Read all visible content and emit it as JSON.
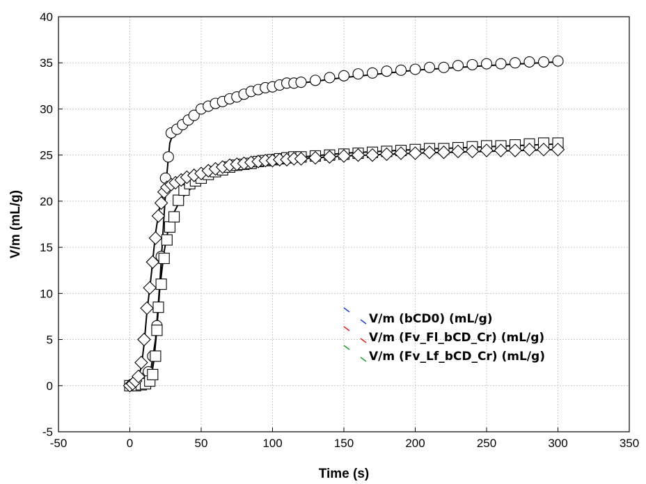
{
  "chart_data": {
    "type": "scatter",
    "xlabel": "Time (s)",
    "ylabel": "V/m (mL/g)",
    "xlim": [
      -50,
      350
    ],
    "ylim": [
      -5,
      40
    ],
    "x_ticks": [
      -50,
      0,
      50,
      100,
      150,
      200,
      250,
      300,
      350
    ],
    "y_ticks": [
      -5,
      0,
      5,
      10,
      15,
      20,
      25,
      30,
      35,
      40
    ],
    "x_tick_labels": [
      "-50",
      "0",
      "50",
      "100",
      "150",
      "200",
      "250",
      "300",
      "350"
    ],
    "y_tick_labels": [
      "-5",
      "0",
      "5",
      "10",
      "15",
      "20",
      "25",
      "30",
      "35",
      "40"
    ],
    "grid": true,
    "legend_position": "lower-right",
    "series": [
      {
        "name": "V/m (bCD0) (mL/g)",
        "marker": "circle",
        "legend_color": "#1f3fd0",
        "points": [
          [
            0,
            0
          ],
          [
            4,
            0.1
          ],
          [
            7,
            0.3
          ],
          [
            10,
            0.8
          ],
          [
            13,
            1.5
          ],
          [
            16,
            3.2
          ],
          [
            19,
            6.5
          ],
          [
            22,
            14
          ],
          [
            25,
            22.5
          ],
          [
            27,
            24.8
          ],
          [
            29,
            27.4
          ],
          [
            33,
            27.8
          ],
          [
            37,
            28.3
          ],
          [
            41,
            28.8
          ],
          [
            45,
            29.3
          ],
          [
            50,
            30
          ],
          [
            55,
            30.3
          ],
          [
            60,
            30.6
          ],
          [
            65,
            30.8
          ],
          [
            70,
            31.1
          ],
          [
            75,
            31.3
          ],
          [
            80,
            31.6
          ],
          [
            85,
            31.9
          ],
          [
            90,
            32.1
          ],
          [
            95,
            32.3
          ],
          [
            100,
            32.4
          ],
          [
            105,
            32.6
          ],
          [
            110,
            32.8
          ],
          [
            115,
            32.8
          ],
          [
            120,
            32.9
          ],
          [
            130,
            33.1
          ],
          [
            140,
            33.4
          ],
          [
            150,
            33.6
          ],
          [
            160,
            33.8
          ],
          [
            170,
            33.9
          ],
          [
            180,
            34.1
          ],
          [
            190,
            34.2
          ],
          [
            200,
            34.3
          ],
          [
            210,
            34.5
          ],
          [
            220,
            34.5
          ],
          [
            230,
            34.7
          ],
          [
            240,
            34.8
          ],
          [
            250,
            34.9
          ],
          [
            260,
            34.9
          ],
          [
            270,
            35
          ],
          [
            280,
            35.1
          ],
          [
            290,
            35.1
          ],
          [
            300,
            35.2
          ]
        ],
        "fit": [
          [
            0,
            0
          ],
          [
            10,
            0.5
          ],
          [
            15,
            2
          ],
          [
            18,
            5
          ],
          [
            21,
            11
          ],
          [
            24,
            18.5
          ],
          [
            26,
            23
          ],
          [
            28,
            26.3
          ],
          [
            31,
            27.6
          ],
          [
            40,
            28.8
          ],
          [
            50,
            29.8
          ],
          [
            60,
            30.5
          ],
          [
            80,
            31.5
          ],
          [
            100,
            32.3
          ],
          [
            120,
            32.8
          ],
          [
            150,
            33.4
          ],
          [
            200,
            34.2
          ],
          [
            250,
            34.7
          ],
          [
            300,
            35.1
          ]
        ]
      },
      {
        "name": "V/m (Fv_Fl_bCD_Cr) (mL/g)",
        "marker": "square",
        "legend_color": "#e02020",
        "points": [
          [
            0,
            0
          ],
          [
            4,
            0
          ],
          [
            8,
            0.1
          ],
          [
            11,
            0.2
          ],
          [
            14,
            0.5
          ],
          [
            16,
            1.2
          ],
          [
            18,
            3.2
          ],
          [
            19,
            6
          ],
          [
            20,
            8.5
          ],
          [
            22,
            11
          ],
          [
            24,
            13.8
          ],
          [
            26,
            15.8
          ],
          [
            28,
            17.2
          ],
          [
            31,
            18.3
          ],
          [
            34,
            20.1
          ],
          [
            38,
            21.2
          ],
          [
            42,
            21.9
          ],
          [
            46,
            22.2
          ],
          [
            50,
            22.5
          ],
          [
            55,
            22.9
          ],
          [
            60,
            23.2
          ],
          [
            65,
            23.4
          ],
          [
            70,
            23.7
          ],
          [
            75,
            23.9
          ],
          [
            80,
            24
          ],
          [
            85,
            24.1
          ],
          [
            90,
            24.3
          ],
          [
            95,
            24.4
          ],
          [
            100,
            24.5
          ],
          [
            105,
            24.6
          ],
          [
            110,
            24.7
          ],
          [
            115,
            24.8
          ],
          [
            120,
            24.8
          ],
          [
            130,
            24.9
          ],
          [
            140,
            25
          ],
          [
            150,
            25.1
          ],
          [
            160,
            25.2
          ],
          [
            170,
            25.3
          ],
          [
            180,
            25.4
          ],
          [
            190,
            25.5
          ],
          [
            200,
            25.6
          ],
          [
            210,
            25.7
          ],
          [
            220,
            25.7
          ],
          [
            230,
            25.8
          ],
          [
            240,
            25.9
          ],
          [
            250,
            26
          ],
          [
            260,
            26
          ],
          [
            270,
            26.1
          ],
          [
            280,
            26.2
          ],
          [
            290,
            26.3
          ],
          [
            300,
            26.3
          ]
        ],
        "fit": [
          [
            0,
            0
          ],
          [
            12,
            0.2
          ],
          [
            15,
            1
          ],
          [
            17,
            2.8
          ],
          [
            19,
            6.2
          ],
          [
            21,
            10.5
          ],
          [
            24,
            14.5
          ],
          [
            27,
            17
          ],
          [
            30,
            18.5
          ],
          [
            35,
            20
          ],
          [
            40,
            21
          ],
          [
            50,
            22.3
          ],
          [
            60,
            23.1
          ],
          [
            80,
            24
          ],
          [
            100,
            24.5
          ],
          [
            150,
            25.2
          ],
          [
            200,
            25.6
          ],
          [
            250,
            25.9
          ],
          [
            300,
            26.2
          ]
        ]
      },
      {
        "name": "V/m (Fv_Lf_bCD_Cr) (mL/g)",
        "marker": "diamond",
        "legend_color": "#1f9a2a",
        "points": [
          [
            0,
            0
          ],
          [
            2,
            0.2
          ],
          [
            4,
            0.5
          ],
          [
            6,
            1
          ],
          [
            8,
            2.5
          ],
          [
            10,
            5
          ],
          [
            12,
            8.4
          ],
          [
            14,
            10.6
          ],
          [
            16,
            13.4
          ],
          [
            18,
            16
          ],
          [
            20,
            18.4
          ],
          [
            22,
            19.8
          ],
          [
            24,
            21
          ],
          [
            26,
            21.5
          ],
          [
            29,
            21.8
          ],
          [
            32,
            22
          ],
          [
            36,
            22.3
          ],
          [
            40,
            22.6
          ],
          [
            45,
            22.8
          ],
          [
            50,
            23
          ],
          [
            55,
            23.3
          ],
          [
            60,
            23.5
          ],
          [
            65,
            23.7
          ],
          [
            70,
            23.9
          ],
          [
            75,
            24
          ],
          [
            80,
            24.1
          ],
          [
            85,
            24.2
          ],
          [
            90,
            24.3
          ],
          [
            95,
            24.4
          ],
          [
            100,
            24.4
          ],
          [
            105,
            24.5
          ],
          [
            110,
            24.5
          ],
          [
            115,
            24.6
          ],
          [
            120,
            24.6
          ],
          [
            130,
            24.7
          ],
          [
            140,
            24.8
          ],
          [
            150,
            24.9
          ],
          [
            160,
            25
          ],
          [
            170,
            25
          ],
          [
            180,
            25.1
          ],
          [
            190,
            25.2
          ],
          [
            200,
            25.2
          ],
          [
            210,
            25.3
          ],
          [
            220,
            25.3
          ],
          [
            230,
            25.4
          ],
          [
            240,
            25.4
          ],
          [
            250,
            25.5
          ],
          [
            260,
            25.5
          ],
          [
            270,
            25.5
          ],
          [
            280,
            25.6
          ],
          [
            290,
            25.6
          ],
          [
            300,
            25.6
          ]
        ],
        "fit": [
          [
            0,
            0
          ],
          [
            5,
            0.5
          ],
          [
            8,
            2
          ],
          [
            10,
            4.5
          ],
          [
            12,
            8
          ],
          [
            15,
            12
          ],
          [
            18,
            16.5
          ],
          [
            21,
            19.5
          ],
          [
            24,
            21
          ],
          [
            28,
            21.8
          ],
          [
            35,
            22.2
          ],
          [
            50,
            23
          ],
          [
            70,
            23.8
          ],
          [
            100,
            24.4
          ],
          [
            150,
            24.9
          ],
          [
            200,
            25.2
          ],
          [
            250,
            25.4
          ],
          [
            300,
            25.6
          ]
        ]
      }
    ]
  }
}
